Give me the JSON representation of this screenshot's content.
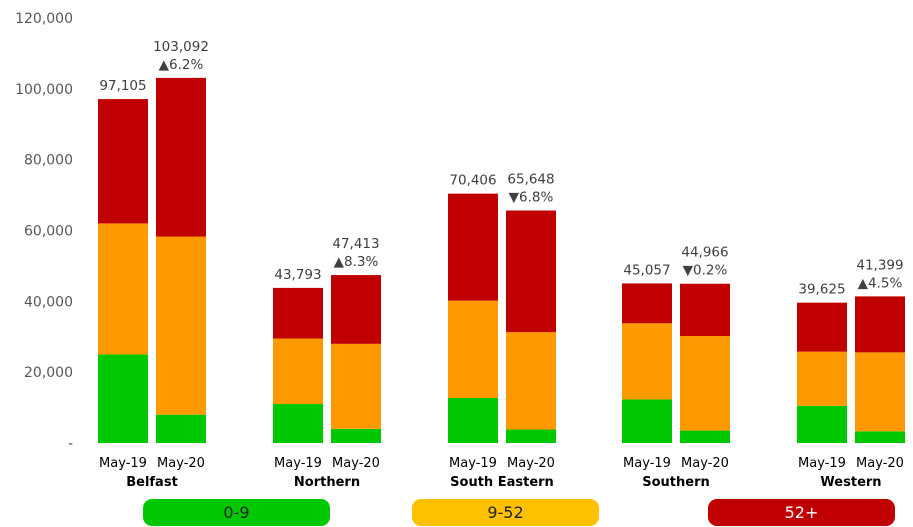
{
  "chart_data": {
    "type": "bar",
    "stacked": true,
    "title": "",
    "xlabel": "",
    "ylabel": "",
    "ylim": [
      0,
      120000
    ],
    "yticks": [
      0,
      20000,
      40000,
      60000,
      80000,
      100000,
      120000
    ],
    "ytick_labels": [
      "-",
      "20,000",
      "40,000",
      "60,000",
      "80,000",
      "100,000",
      "120,000"
    ],
    "grid": false,
    "series_colors": [
      "#00c800",
      "#ff9900",
      "#c00000"
    ],
    "groups": [
      {
        "name": "Belfast",
        "bars": [
          {
            "label": "May-19",
            "segments": [
              25000,
              37000,
              35105
            ],
            "total": "97,105",
            "change": ""
          },
          {
            "label": "May-20",
            "segments": [
              8000,
              50300,
              44792
            ],
            "total": "103,092",
            "change": "▲6.2%"
          }
        ]
      },
      {
        "name": "Northern",
        "bars": [
          {
            "label": "May-19",
            "segments": [
              11000,
              18500,
              14293
            ],
            "total": "43,793",
            "change": ""
          },
          {
            "label": "May-20",
            "segments": [
              4000,
              24000,
              19413
            ],
            "total": "47,413",
            "change": "▲8.3%"
          }
        ]
      },
      {
        "name": "South Eastern",
        "bars": [
          {
            "label": "May-19",
            "segments": [
              12700,
              27500,
              30206
            ],
            "total": "70,406",
            "change": ""
          },
          {
            "label": "May-20",
            "segments": [
              3800,
              27500,
              34348
            ],
            "total": "65,648",
            "change": "▼6.8%"
          }
        ]
      },
      {
        "name": "Southern",
        "bars": [
          {
            "label": "May-19",
            "segments": [
              12300,
              21500,
              11257
            ],
            "total": "45,057",
            "change": ""
          },
          {
            "label": "May-20",
            "segments": [
              3500,
              26700,
              14766
            ],
            "total": "44,966",
            "change": "▼0.2%"
          }
        ]
      },
      {
        "name": "Western",
        "bars": [
          {
            "label": "May-19",
            "segments": [
              10500,
              15300,
              13825
            ],
            "total": "39,625",
            "change": ""
          },
          {
            "label": "May-20",
            "segments": [
              3300,
              22300,
              15799
            ],
            "total": "41,399",
            "change": "▲4.5%"
          }
        ]
      }
    ],
    "legend": [
      {
        "label": "0-9",
        "color": "#00c800"
      },
      {
        "label": "9-52",
        "color": "#ffc000"
      },
      {
        "label": "52+",
        "color": "#c00000"
      }
    ],
    "legend_placement": "bottom"
  }
}
